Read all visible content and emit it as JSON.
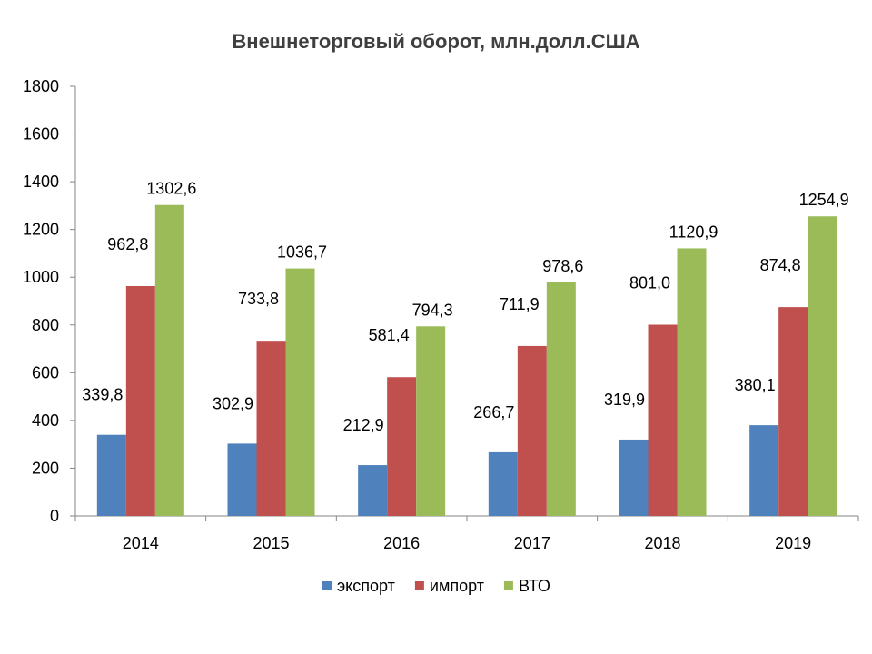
{
  "chart_data": {
    "type": "bar",
    "title": "Внешнеторговый оборот, млн.долл.США",
    "categories": [
      "2014",
      "2015",
      "2016",
      "2017",
      "2018",
      "2019"
    ],
    "ylim": [
      0,
      1800
    ],
    "yticks": [
      0,
      200,
      400,
      600,
      800,
      1000,
      1200,
      1400,
      1600,
      1800
    ],
    "grid": false,
    "legend_position": "bottom",
    "series": [
      {
        "name": "экспорт",
        "color": "#4f81bd",
        "values": [
          339.8,
          302.9,
          212.9,
          266.7,
          319.9,
          380.1
        ],
        "labels": [
          "339,8",
          "302,9",
          "212,9",
          "266,7",
          "319,9",
          "380,1"
        ]
      },
      {
        "name": "импорт",
        "color": "#c0504d",
        "values": [
          962.8,
          733.8,
          581.4,
          711.9,
          801.0,
          874.8
        ],
        "labels": [
          "962,8",
          "733,8",
          "581,4",
          "711,9",
          "801,0",
          "874,8"
        ]
      },
      {
        "name": "ВТО",
        "color": "#9bbb59",
        "values": [
          1302.6,
          1036.7,
          794.3,
          978.6,
          1120.9,
          1254.9
        ],
        "labels": [
          "1302,6",
          "1036,7",
          "794,3",
          "978,6",
          "1120,9",
          "1254,9"
        ]
      }
    ]
  }
}
